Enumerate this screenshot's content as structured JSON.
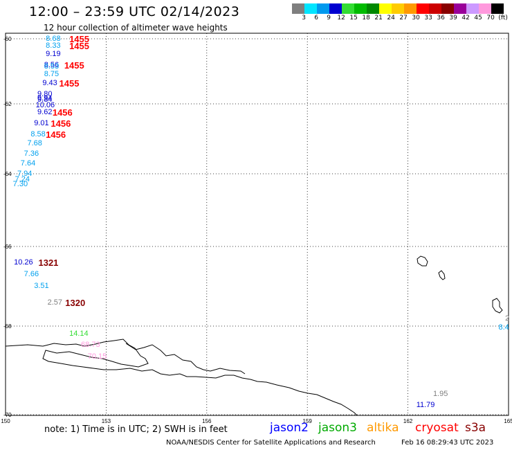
{
  "header": {
    "title": "12:00 – 23:59 UTC 02/14/2023",
    "subtitle": "12 hour collection of altimeter wave heights"
  },
  "legend": {
    "colors": [
      "#7f7f7f",
      "#00e5ff",
      "#0099ee",
      "#0000d0",
      "#33dd33",
      "#00bb00",
      "#008800",
      "#ffff00",
      "#ffcc00",
      "#ff9900",
      "#ff0000",
      "#cc0000",
      "#880000",
      "#990099",
      "#cc99ff",
      "#ff99dd",
      "#000000"
    ],
    "ticks": [
      "3",
      "6",
      "9",
      "12",
      "15",
      "18",
      "21",
      "24",
      "27",
      "30",
      "33",
      "36",
      "39",
      "42",
      "45",
      "70",
      "(ft)"
    ]
  },
  "axes": {
    "lat_labels": [
      "-60",
      "-62",
      "-64",
      "-66",
      "-68",
      "-70"
    ],
    "lon_labels": [
      "150",
      "153",
      "156",
      "159",
      "162",
      "165"
    ]
  },
  "observations": [
    {
      "v": "8.68",
      "lon": 151.2,
      "lat": -60.02,
      "color": "#00a0ee"
    },
    {
      "v": "8.33",
      "lon": 151.2,
      "lat": -60.23,
      "color": "#00a0ee"
    },
    {
      "v": "9.19",
      "lon": 151.2,
      "lat": -60.48,
      "color": "#0000d0"
    },
    {
      "v": "8.56",
      "lon": 151.15,
      "lat": -60.82,
      "color": "#0000d0"
    },
    {
      "v": "8.53",
      "lon": 151.15,
      "lat": -60.88,
      "color": "#00a0ee"
    },
    {
      "v": "8.75",
      "lon": 151.15,
      "lat": -61.1,
      "color": "#00a0ee"
    },
    {
      "v": "9.43",
      "lon": 151.1,
      "lat": -61.38,
      "color": "#0000d0"
    },
    {
      "v": "9.80",
      "lon": 150.95,
      "lat": -61.72,
      "color": "#0000d0"
    },
    {
      "v": "9.94",
      "lon": 150.95,
      "lat": -61.85,
      "color": "#0000d0"
    },
    {
      "v": "9.84",
      "lon": 150.95,
      "lat": -61.9,
      "color": "#0000d0"
    },
    {
      "v": "10.06",
      "lon": 150.9,
      "lat": -62.05,
      "color": "#0000d0"
    },
    {
      "v": "9.62",
      "lon": 150.95,
      "lat": -62.25,
      "color": "#0000d0"
    },
    {
      "v": "9.01",
      "lon": 150.85,
      "lat": -62.58,
      "color": "#0000d0"
    },
    {
      "v": "8.58",
      "lon": 150.75,
      "lat": -62.9,
      "color": "#00a0ee"
    },
    {
      "v": "7.68",
      "lon": 150.65,
      "lat": -63.15,
      "color": "#00a0ee"
    },
    {
      "v": "7.36",
      "lon": 150.55,
      "lat": -63.45,
      "color": "#00a0ee"
    },
    {
      "v": "7.64",
      "lon": 150.45,
      "lat": -63.72,
      "color": "#00a0ee"
    },
    {
      "v": "7.94",
      "lon": 150.35,
      "lat": -64.02,
      "color": "#00a0ee"
    },
    {
      "v": "7.24",
      "lon": 150.28,
      "lat": -64.18,
      "color": "#00a0ee"
    },
    {
      "v": "7.30",
      "lon": 150.22,
      "lat": -64.3,
      "color": "#00a0ee"
    },
    {
      "v": "10.26",
      "lon": 150.25,
      "lat": -66.42,
      "color": "#0000d0"
    },
    {
      "v": "7.66",
      "lon": 150.55,
      "lat": -66.72,
      "color": "#00a0ee"
    },
    {
      "v": "3.51",
      "lon": 150.85,
      "lat": -67.0,
      "color": "#00a0ee"
    },
    {
      "v": "2.57",
      "lon": 151.25,
      "lat": -67.43,
      "color": "#7f7f7f"
    },
    {
      "v": "14.14",
      "lon": 151.9,
      "lat": -68.18,
      "color": "#33dd33"
    },
    {
      "v": "68.73",
      "lon": 152.25,
      "lat": -68.44,
      "color": "#ff99dd"
    },
    {
      "v": "70.15",
      "lon": 152.45,
      "lat": -68.7,
      "color": "#ff99dd"
    },
    {
      "v": "1.95",
      "lon": 162.75,
      "lat": -69.55,
      "color": "#7f7f7f"
    },
    {
      "v": "11.79",
      "lon": 162.25,
      "lat": -69.79,
      "color": "#0000d0"
    },
    {
      "v": "2",
      "lon": 164.9,
      "lat": -67.82,
      "color": "#7f7f7f"
    },
    {
      "v": "8.4",
      "lon": 164.7,
      "lat": -68.05,
      "color": "#00a0ee"
    }
  ],
  "time_labels": [
    {
      "t": "1455",
      "lon": 151.9,
      "lat": -60.02,
      "color": "#ff0000"
    },
    {
      "t": "1455",
      "lon": 151.9,
      "lat": -60.23,
      "color": "#ff0000"
    },
    {
      "t": "1455",
      "lon": 151.75,
      "lat": -60.82,
      "color": "#ff0000"
    },
    {
      "t": "1455",
      "lon": 151.6,
      "lat": -61.38,
      "color": "#ff0000"
    },
    {
      "t": "1456",
      "lon": 151.4,
      "lat": -62.25,
      "color": "#ff0000"
    },
    {
      "t": "1456",
      "lon": 151.35,
      "lat": -62.58,
      "color": "#ff0000"
    },
    {
      "t": "1456",
      "lon": 151.2,
      "lat": -62.9,
      "color": "#ff0000"
    },
    {
      "t": "1321",
      "lon": 150.98,
      "lat": -66.42,
      "color": "#880000"
    },
    {
      "t": "1320",
      "lon": 151.78,
      "lat": -67.43,
      "color": "#880000"
    }
  ],
  "footer": {
    "note": "note:  1) Time is in UTC; 2) SWH is in feet",
    "satellites": [
      {
        "name": "jason2",
        "color": "#0000ff"
      },
      {
        "name": "jason3",
        "color": "#00aa00"
      },
      {
        "name": "altika",
        "color": "#ff9900"
      },
      {
        "name": "cryosat",
        "color": "#ff0000"
      },
      {
        "name": "s3a",
        "color": "#880000"
      }
    ],
    "credit": "NOAA/NESDIS Center for Satellite Applications and Research",
    "timestamp": "Feb 16 08:29:43 UTC 2023"
  }
}
